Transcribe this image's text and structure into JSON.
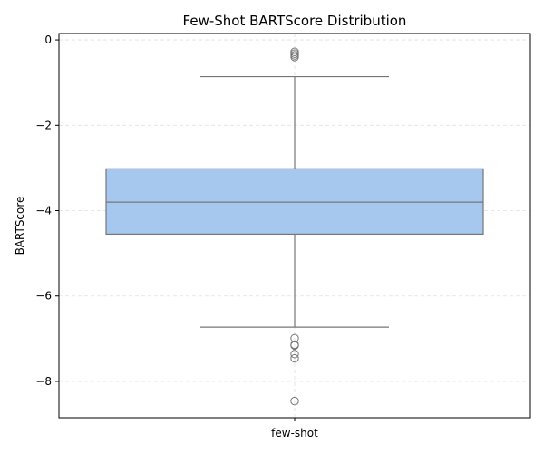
{
  "chart_data": {
    "type": "box",
    "title": "Few-Shot BARTScore Distribution",
    "xlabel": "",
    "ylabel": "BARTScore",
    "categories": [
      "few-shot"
    ],
    "ylim": [
      -8.85,
      0.15
    ],
    "yticks": [
      0,
      -2,
      -4,
      -6,
      -8
    ],
    "ytick_labels": [
      "0",
      "−2",
      "−4",
      "−6",
      "−8"
    ],
    "grid": true,
    "series": [
      {
        "box": {
          "q1": -4.55,
          "median": -3.8,
          "q3": -3.02,
          "whisker_low": -6.73,
          "whisker_high": -0.86
        },
        "outliers": [
          -0.28,
          -0.32,
          -0.36,
          -0.4,
          -6.99,
          -7.14,
          -7.16,
          -7.36,
          -7.46,
          -8.46
        ]
      }
    ],
    "colors": {
      "box_fill": "#a6c8ee",
      "box_edge": "#767676",
      "grid": "#e0e0e0"
    }
  }
}
